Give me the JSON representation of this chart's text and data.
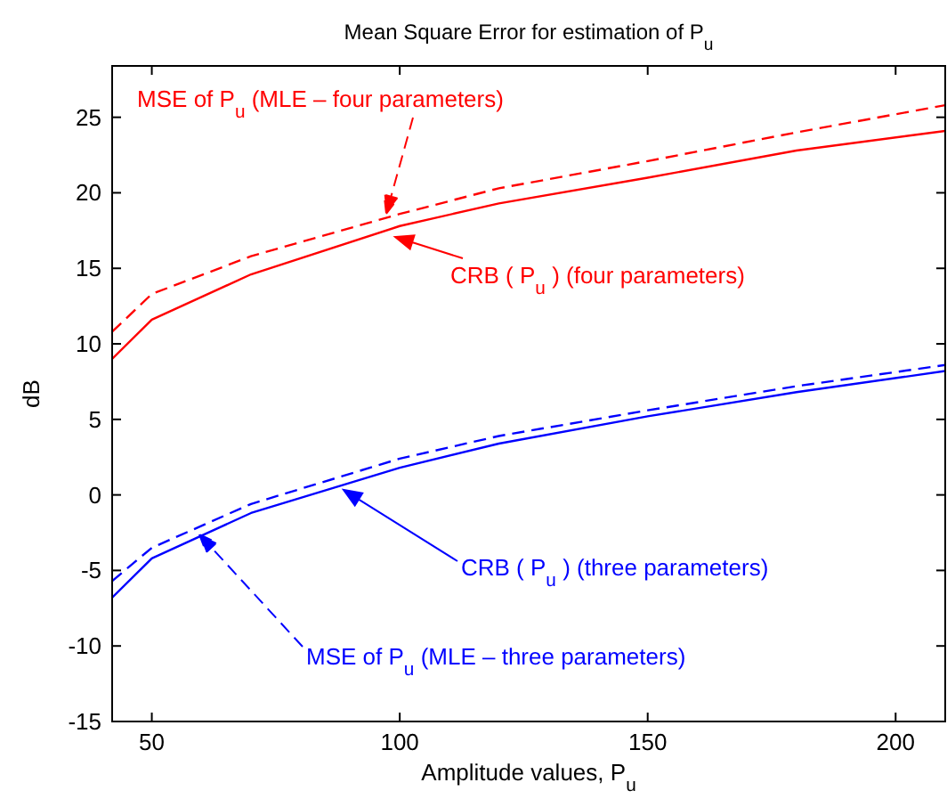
{
  "chart_data": {
    "type": "line",
    "title": "Mean Square Error for estimation of P$_{u}$",
    "xlabel": "Amplitude values, P$_{u}$",
    "ylabel": "dB",
    "x": [
      42,
      50,
      70,
      100,
      120,
      150,
      180,
      210
    ],
    "series": [
      {
        "color": "#ff0000",
        "line_style": "solid",
        "values": [
          9,
          11.6,
          14.6,
          17.8,
          19.3,
          21,
          22.8,
          24.1
        ]
      },
      {
        "color": "#ff0000",
        "line_style": "dashed",
        "values": [
          10.8,
          13.3,
          15.8,
          18.6,
          20.3,
          22.1,
          24,
          25.8
        ]
      },
      {
        "color": "#0000ff",
        "line_style": "solid",
        "values": [
          -6.8,
          -4.2,
          -1.2,
          1.8,
          3.4,
          5.2,
          6.8,
          8.2
        ]
      },
      {
        "color": "#0000ff",
        "line_style": "dashed",
        "values": [
          -5.7,
          -3.5,
          -0.6,
          2.4,
          3.9,
          5.6,
          7.2,
          8.6
        ]
      }
    ],
    "annotations": [
      "MSE of P$_{u}$ (MLE – four parameters)",
      "CRB ( P$_{u}$ ) (four parameters)",
      "CRB ( P$_{u}$ ) (three parameters)",
      "MSE of P$_{u}$ (MLE – three parameters)"
    ],
    "xlim": [
      42,
      210
    ],
    "ylim": [
      -15,
      28.4
    ],
    "xticks": [
      50,
      100,
      150,
      200
    ],
    "yticks": [
      -15,
      -10,
      -5,
      0,
      5,
      10,
      15,
      20,
      25
    ],
    "grid": false,
    "marker": "none"
  }
}
